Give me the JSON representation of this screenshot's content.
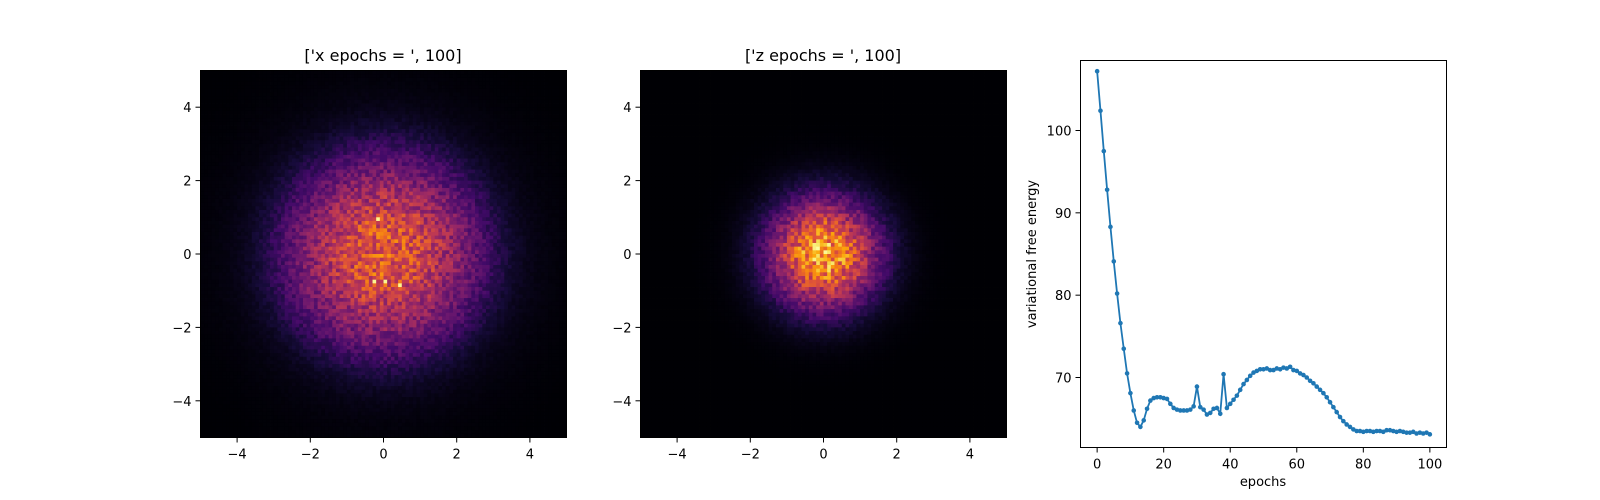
{
  "figure": {
    "background": "#ffffff",
    "colormap": "inferno"
  },
  "chart_data": [
    {
      "type": "heatmap",
      "title": "['x epochs = ', 100]",
      "xlim": [
        -5,
        5
      ],
      "ylim": [
        -5,
        5
      ],
      "xticks": [
        -4,
        -2,
        0,
        2,
        4
      ],
      "yticks": [
        -4,
        -2,
        0,
        2,
        4
      ],
      "bins": 100,
      "sigma": 2.0,
      "radius": 3.4,
      "peak": 0.62,
      "colormap": "inferno",
      "seed": 7
    },
    {
      "type": "heatmap",
      "title": "['z epochs = ', 100]",
      "xlim": [
        -5,
        5
      ],
      "ylim": [
        -5,
        5
      ],
      "xticks": [
        -4,
        -2,
        0,
        2,
        4
      ],
      "yticks": [
        -4,
        -2,
        0,
        2,
        4
      ],
      "bins": 100,
      "sigma": 1.05,
      "radius": 2.55,
      "peak": 0.8,
      "colormap": "inferno",
      "seed": 13
    },
    {
      "type": "line",
      "title": "",
      "xlabel": "epochs",
      "ylabel": "variational free energy",
      "xlim": [
        -5,
        105
      ],
      "ylim": [
        61.5,
        108.5
      ],
      "xticks": [
        0,
        20,
        40,
        60,
        80,
        100
      ],
      "yticks": [
        70,
        80,
        90,
        100
      ],
      "series": [
        {
          "color": "#1f77b4",
          "marker": "o",
          "x": [
            0,
            1,
            2,
            3,
            4,
            5,
            6,
            7,
            8,
            9,
            10,
            11,
            12,
            13,
            14,
            15,
            16,
            17,
            18,
            19,
            20,
            21,
            22,
            23,
            24,
            25,
            26,
            27,
            28,
            29,
            30,
            31,
            32,
            33,
            34,
            35,
            36,
            37,
            38,
            39,
            40,
            41,
            42,
            43,
            44,
            45,
            46,
            47,
            48,
            49,
            50,
            51,
            52,
            53,
            54,
            55,
            56,
            57,
            58,
            59,
            60,
            61,
            62,
            63,
            64,
            65,
            66,
            67,
            68,
            69,
            70,
            71,
            72,
            73,
            74,
            75,
            76,
            77,
            78,
            79,
            80,
            81,
            82,
            83,
            84,
            85,
            86,
            87,
            88,
            89,
            90,
            91,
            92,
            93,
            94,
            95,
            96,
            97,
            98,
            99,
            100
          ],
          "y": [
            107.2,
            102.4,
            97.5,
            92.8,
            88.3,
            84.1,
            80.2,
            76.6,
            73.5,
            70.5,
            68.1,
            66.0,
            64.5,
            64.0,
            64.8,
            66.2,
            67.2,
            67.5,
            67.6,
            67.6,
            67.5,
            67.4,
            66.8,
            66.3,
            66.1,
            66.0,
            66.0,
            66.0,
            66.1,
            66.5,
            68.9,
            66.4,
            66.1,
            65.5,
            65.7,
            66.2,
            66.3,
            65.6,
            70.4,
            66.3,
            66.8,
            67.3,
            67.8,
            68.5,
            69.2,
            69.7,
            70.2,
            70.6,
            70.8,
            71.0,
            71.0,
            71.1,
            70.9,
            70.9,
            71.1,
            71.0,
            71.2,
            71.1,
            71.3,
            70.9,
            70.8,
            70.5,
            70.3,
            70.0,
            69.6,
            69.3,
            68.9,
            68.5,
            68.1,
            67.6,
            67.0,
            66.4,
            65.8,
            65.2,
            64.7,
            64.3,
            64.0,
            63.7,
            63.5,
            63.5,
            63.4,
            63.5,
            63.5,
            63.4,
            63.5,
            63.5,
            63.4,
            63.6,
            63.6,
            63.5,
            63.4,
            63.5,
            63.4,
            63.3,
            63.3,
            63.4,
            63.2,
            63.3,
            63.2,
            63.3,
            63.1
          ]
        }
      ]
    }
  ]
}
